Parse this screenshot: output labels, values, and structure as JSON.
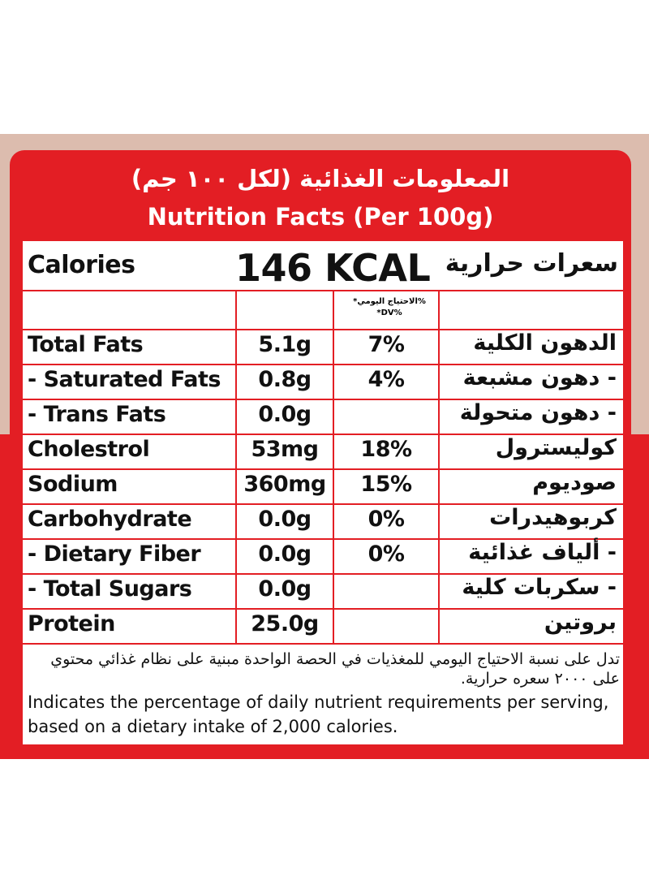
{
  "header": {
    "arabic_title": "المعلومات الغذائية (لكل ١٠٠ جم)",
    "title": "Nutrition Facts (Per 100g)"
  },
  "calories": {
    "label": "Calories",
    "value": "146 KCAL",
    "arabic": "سعرات حرارية"
  },
  "table": {
    "dv_header": "%الاحتياج اليومي* %DV*",
    "rows": [
      {
        "name": "Total Fats",
        "amount": "5.1g",
        "dv": "7%",
        "arabic": "الدهون الكلية"
      },
      {
        "name": "- Saturated Fats",
        "amount": "0.8g",
        "dv": "4%",
        "arabic": "- دهون مشبعة"
      },
      {
        "name": "- Trans Fats",
        "amount": "0.0g",
        "arabic": "- دهون متحولة"
      },
      {
        "name": "Cholestrol",
        "amount": "53mg",
        "dv": "18%",
        "arabic": "كوليسترول"
      },
      {
        "name": "Sodium",
        "amount": "360mg",
        "dv": "15%",
        "arabic": "صوديوم"
      },
      {
        "name": "Carbohydrate",
        "amount": "0.0g",
        "dv": "0%",
        "arabic": "كربوهيدرات"
      },
      {
        "name": "- Dietary Fiber",
        "amount": "0.0g",
        "dv": "0%",
        "arabic": "- ألياف غذائية"
      },
      {
        "name": "- Total Sugars",
        "amount": "0.0g",
        "arabic": "- سكربات كلية"
      },
      {
        "name": "Protein",
        "amount": "25.0g",
        "arabic": "بروتين"
      }
    ]
  },
  "footnote": {
    "arabic": "تدل على نسبة الاحتياج اليومي للمغذيات في الحصة الواحدة مبنية على نظام غذائي محتوي على ٢٠٠٠ سعره حرارية.",
    "english": "Indicates the percentage of daily nutrient requirements per serving, based on a dietary intake of 2,000 calories."
  }
}
